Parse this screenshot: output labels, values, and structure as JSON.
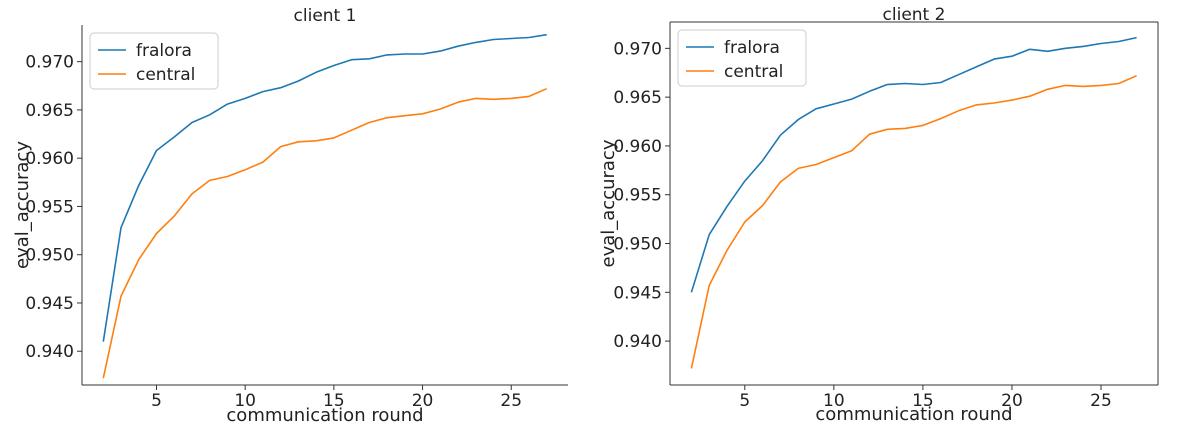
{
  "chart_data": [
    {
      "type": "line",
      "title": "client 1",
      "xlabel": "communication round",
      "ylabel": "eval_accuracy",
      "xlim": [
        0.8,
        28.2
      ],
      "ylim": [
        0.9365,
        0.9738
      ],
      "xticks": [
        5,
        10,
        15,
        20,
        25
      ],
      "yticks": [
        0.94,
        0.945,
        0.95,
        0.955,
        0.96,
        0.965,
        0.97
      ],
      "ytick_labels": [
        "0.940",
        "0.945",
        "0.950",
        "0.955",
        "0.960",
        "0.965",
        "0.970"
      ],
      "legend_position": "top-left",
      "x": [
        2,
        3,
        4,
        5,
        6,
        7,
        8,
        9,
        10,
        11,
        12,
        13,
        14,
        15,
        16,
        17,
        18,
        19,
        20,
        21,
        22,
        23,
        24,
        25,
        26,
        27
      ],
      "series": [
        {
          "name": "fralora",
          "color": "#1f77b4",
          "values": [
            0.941,
            0.9528,
            0.9572,
            0.9608,
            0.9622,
            0.9637,
            0.9645,
            0.9656,
            0.9662,
            0.9669,
            0.9673,
            0.968,
            0.9689,
            0.9696,
            0.9702,
            0.9703,
            0.9707,
            0.9708,
            0.9708,
            0.9711,
            0.9716,
            0.972,
            0.9723,
            0.9724,
            0.9725,
            0.9728
          ]
        },
        {
          "name": "central",
          "color": "#ff7f0e",
          "values": [
            0.9372,
            0.9457,
            0.9495,
            0.9522,
            0.954,
            0.9563,
            0.9577,
            0.9581,
            0.9588,
            0.9596,
            0.9612,
            0.9617,
            0.9618,
            0.9621,
            0.9629,
            0.9637,
            0.9642,
            0.9644,
            0.9646,
            0.9651,
            0.9658,
            0.9662,
            0.9661,
            0.9662,
            0.9664,
            0.9672
          ]
        }
      ]
    },
    {
      "type": "line",
      "title": "client 2",
      "xlabel": "communication round",
      "ylabel": "eval_accuracy",
      "xlim": [
        0.8,
        28.2
      ],
      "ylim": [
        0.9355,
        0.9727
      ],
      "xticks": [
        5,
        10,
        15,
        20,
        25
      ],
      "yticks": [
        0.94,
        0.945,
        0.95,
        0.955,
        0.96,
        0.965,
        0.97
      ],
      "ytick_labels": [
        "0.940",
        "0.945",
        "0.950",
        "0.955",
        "0.960",
        "0.965",
        "0.970"
      ],
      "legend_position": "top-left",
      "x": [
        2,
        3,
        4,
        5,
        6,
        7,
        8,
        9,
        10,
        11,
        12,
        13,
        14,
        15,
        16,
        17,
        18,
        19,
        20,
        21,
        22,
        23,
        24,
        25,
        26,
        27
      ],
      "series": [
        {
          "name": "fralora",
          "color": "#1f77b4",
          "values": [
            0.945,
            0.9509,
            0.9538,
            0.9564,
            0.9585,
            0.9611,
            0.9627,
            0.9638,
            0.9643,
            0.9648,
            0.9656,
            0.9663,
            0.9664,
            0.9663,
            0.9665,
            0.9673,
            0.9681,
            0.9689,
            0.9692,
            0.9699,
            0.9697,
            0.97,
            0.9702,
            0.9705,
            0.9707,
            0.9711
          ]
        },
        {
          "name": "central",
          "color": "#ff7f0e",
          "values": [
            0.9372,
            0.9457,
            0.9493,
            0.9522,
            0.9539,
            0.9563,
            0.9577,
            0.9581,
            0.9588,
            0.9595,
            0.9612,
            0.9617,
            0.9618,
            0.9621,
            0.9628,
            0.9636,
            0.9642,
            0.9644,
            0.9647,
            0.9651,
            0.9658,
            0.9662,
            0.9661,
            0.9662,
            0.9664,
            0.9672
          ]
        }
      ]
    }
  ]
}
